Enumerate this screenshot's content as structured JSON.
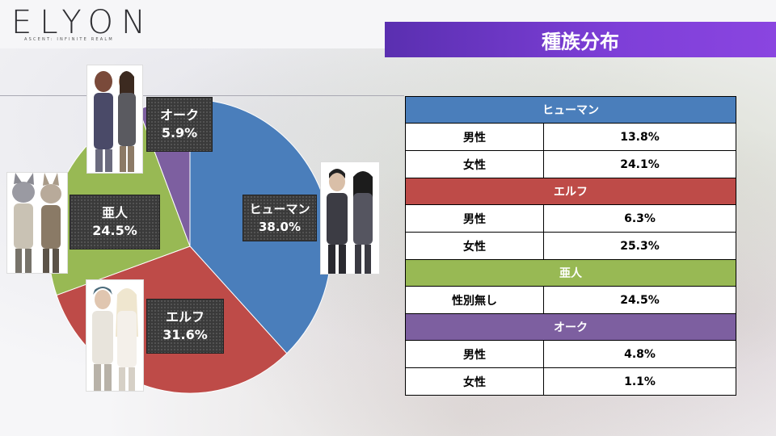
{
  "header": {
    "logo": "ELYON",
    "logo_sub": "ASCENT: INFINITE REALM",
    "title": "種族分布"
  },
  "colors": {
    "human": "#4a7ebb",
    "elf": "#be4b48",
    "demi": "#98b954",
    "orc": "#7d5fa0",
    "title_bar": "#6f3ad0"
  },
  "chart_data": {
    "type": "pie",
    "title": "種族分布",
    "slices": [
      {
        "name": "ヒューマン",
        "value": 38.0,
        "label": "38.0%",
        "color": "#4a7ebb"
      },
      {
        "name": "エルフ",
        "value": 31.6,
        "label": "31.6%",
        "color": "#be4b48"
      },
      {
        "name": "亜人",
        "value": 24.5,
        "label": "24.5%",
        "color": "#98b954"
      },
      {
        "name": "オーク",
        "value": 5.9,
        "label": "5.9%",
        "color": "#7d5fa0"
      }
    ]
  },
  "table": {
    "groups": [
      {
        "name": "ヒューマン",
        "color": "#4a7ebb",
        "rows": [
          {
            "label": "男性",
            "value": "13.8%"
          },
          {
            "label": "女性",
            "value": "24.1%"
          }
        ]
      },
      {
        "name": "エルフ",
        "color": "#be4b48",
        "rows": [
          {
            "label": "男性",
            "value": "6.3%"
          },
          {
            "label": "女性",
            "value": "25.3%"
          }
        ]
      },
      {
        "name": "亜人",
        "color": "#98b954",
        "rows": [
          {
            "label": "性別無し",
            "value": "24.5%"
          }
        ]
      },
      {
        "name": "オーク",
        "color": "#7d5fa0",
        "rows": [
          {
            "label": "男性",
            "value": "4.8%"
          },
          {
            "label": "女性",
            "value": "1.1%"
          }
        ]
      }
    ]
  }
}
